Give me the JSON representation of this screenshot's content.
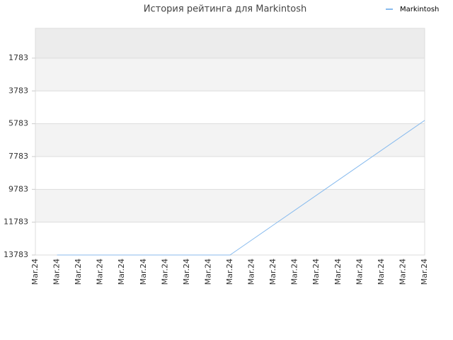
{
  "chart_data": {
    "type": "line",
    "title": "История рейтинга для Markintosh",
    "categories": [
      "Mar.24",
      "Mar.24",
      "Mar.24",
      "Mar.24",
      "Mar.24",
      "Mar.24",
      "Mar.24",
      "Mar.24",
      "Mar.24",
      "Mar.24",
      "Mar.24",
      "Mar.24",
      "Mar.24",
      "Mar.24",
      "Mar.24",
      "Mar.24",
      "Mar.24",
      "Mar.24",
      "Mar.24"
    ],
    "series": [
      {
        "name": "Markintosh",
        "color": "#88bbee",
        "values": [
          null,
          13783,
          13783,
          13783,
          13783,
          13783,
          13783,
          13783,
          13783,
          13783,
          12872,
          11960,
          11049,
          10137,
          9226,
          8315,
          7403,
          6492,
          5580
        ]
      }
    ],
    "ylim": [
      13783,
      -30
    ],
    "yticks": [
      1783,
      3783,
      5783,
      7783,
      9783,
      11783,
      13783
    ],
    "grid": true,
    "legend": "top-right"
  }
}
